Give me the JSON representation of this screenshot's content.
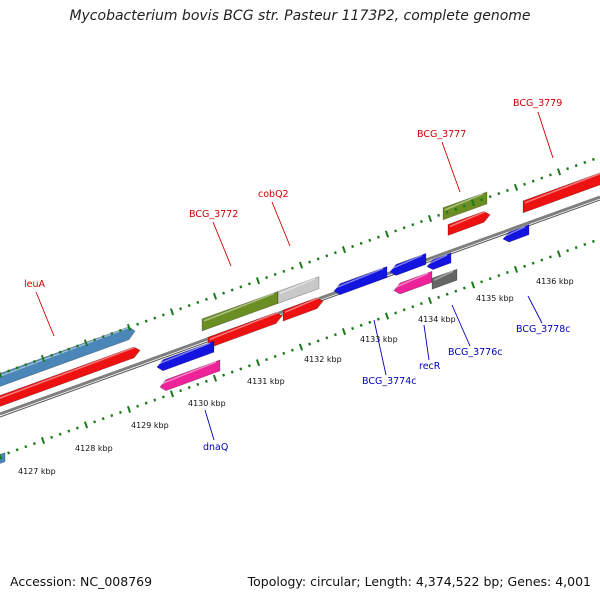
{
  "title": "Mycobacterium bovis BCG str. Pasteur 1173P2, complete genome",
  "footer": {
    "accession": "Accession: NC_008769",
    "topology": "Topology: circular; Length: 4,374,522 bp; Genes: 4,001"
  },
  "colors": {
    "background": "#ffffff",
    "backbone": "#808080",
    "tick": "#1a7a1a",
    "forward_label": "#cc0000",
    "reverse_label": "#0000bb",
    "cds_red": "#ee1111",
    "gene_steelblue": "#4a86b8",
    "gene_olive": "#6b8e23",
    "gene_lightgray": "#c8c8c8",
    "gene_blue": "#1414e0",
    "gene_pink": "#ee2299",
    "gene_darkgray": "#666666"
  },
  "axis_ticks": [
    "4127 kbp",
    "4128 kbp",
    "4129 kbp",
    "4130 kbp",
    "4131 kbp",
    "4132 kbp",
    "4133 kbp",
    "4134 kbp",
    "4135 kbp",
    "4136 kbp"
  ],
  "forward_labels": [
    "leuA",
    "BCG_3772",
    "cobQ2",
    "BCG_3777",
    "BCG_3779"
  ],
  "reverse_labels": [
    "dnaQ",
    "BCG_3774c",
    "recR",
    "BCG_3776c",
    "BCG_3778c"
  ]
}
